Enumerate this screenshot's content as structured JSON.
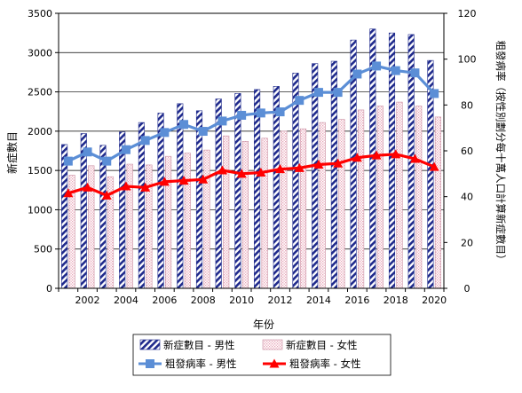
{
  "chart_data": {
    "type": "bar",
    "x": [
      2001,
      2002,
      2003,
      2004,
      2005,
      2006,
      2007,
      2008,
      2009,
      2010,
      2011,
      2012,
      2013,
      2014,
      2015,
      2016,
      2017,
      2018,
      2019,
      2020
    ],
    "x_tick_labels": [
      "2002",
      "2004",
      "2006",
      "2008",
      "2010",
      "2012",
      "2014",
      "2016",
      "2018",
      "2020"
    ],
    "xlabel": "年份",
    "ylabel": "新症數目",
    "y2label": "粗發病率（按性別劃分每十萬人口計算新症數目）",
    "ylim": [
      0,
      3500
    ],
    "y_ticks": [
      "0",
      "500",
      "1000",
      "1500",
      "2000",
      "2500",
      "3000",
      "3500"
    ],
    "y2lim": [
      0,
      120
    ],
    "y2_ticks": [
      "0",
      "20",
      "40",
      "60",
      "80",
      "100",
      "120"
    ],
    "series": [
      {
        "name": "新症數目 - 男性",
        "kind": "bar",
        "axis": "left",
        "color": "#1f2a8c",
        "values": [
          1830,
          1970,
          1820,
          1990,
          2110,
          2230,
          2350,
          2260,
          2410,
          2480,
          2530,
          2570,
          2740,
          2860,
          2890,
          3160,
          3300,
          3250,
          3230,
          2900
        ]
      },
      {
        "name": "新症數目 - 女性",
        "kind": "bar",
        "axis": "left",
        "color": "#e8a6b8",
        "values": [
          1440,
          1560,
          1420,
          1580,
          1570,
          1680,
          1720,
          1760,
          1940,
          1870,
          1910,
          2000,
          2030,
          2110,
          2150,
          2270,
          2320,
          2370,
          2320,
          2180
        ]
      },
      {
        "name": "粗發病率 - 男性",
        "kind": "line",
        "axis": "right",
        "color": "#5b8ed6",
        "values": [
          55.5,
          59.5,
          55.5,
          60.5,
          64.5,
          68,
          71.5,
          68.5,
          73,
          75.5,
          76.5,
          77,
          82,
          85.5,
          85.5,
          93.5,
          97,
          95,
          94,
          85
        ]
      },
      {
        "name": "粗發病率 - 女性",
        "kind": "line",
        "axis": "right",
        "color": "#ff0000",
        "values": [
          41.5,
          44,
          40.5,
          44.5,
          44,
          46.5,
          47,
          47.5,
          51.5,
          50,
          50.5,
          52,
          52.5,
          54,
          54.5,
          57,
          58,
          58.5,
          56.5,
          53
        ]
      }
    ],
    "legend_position": "bottom",
    "grid": true
  }
}
